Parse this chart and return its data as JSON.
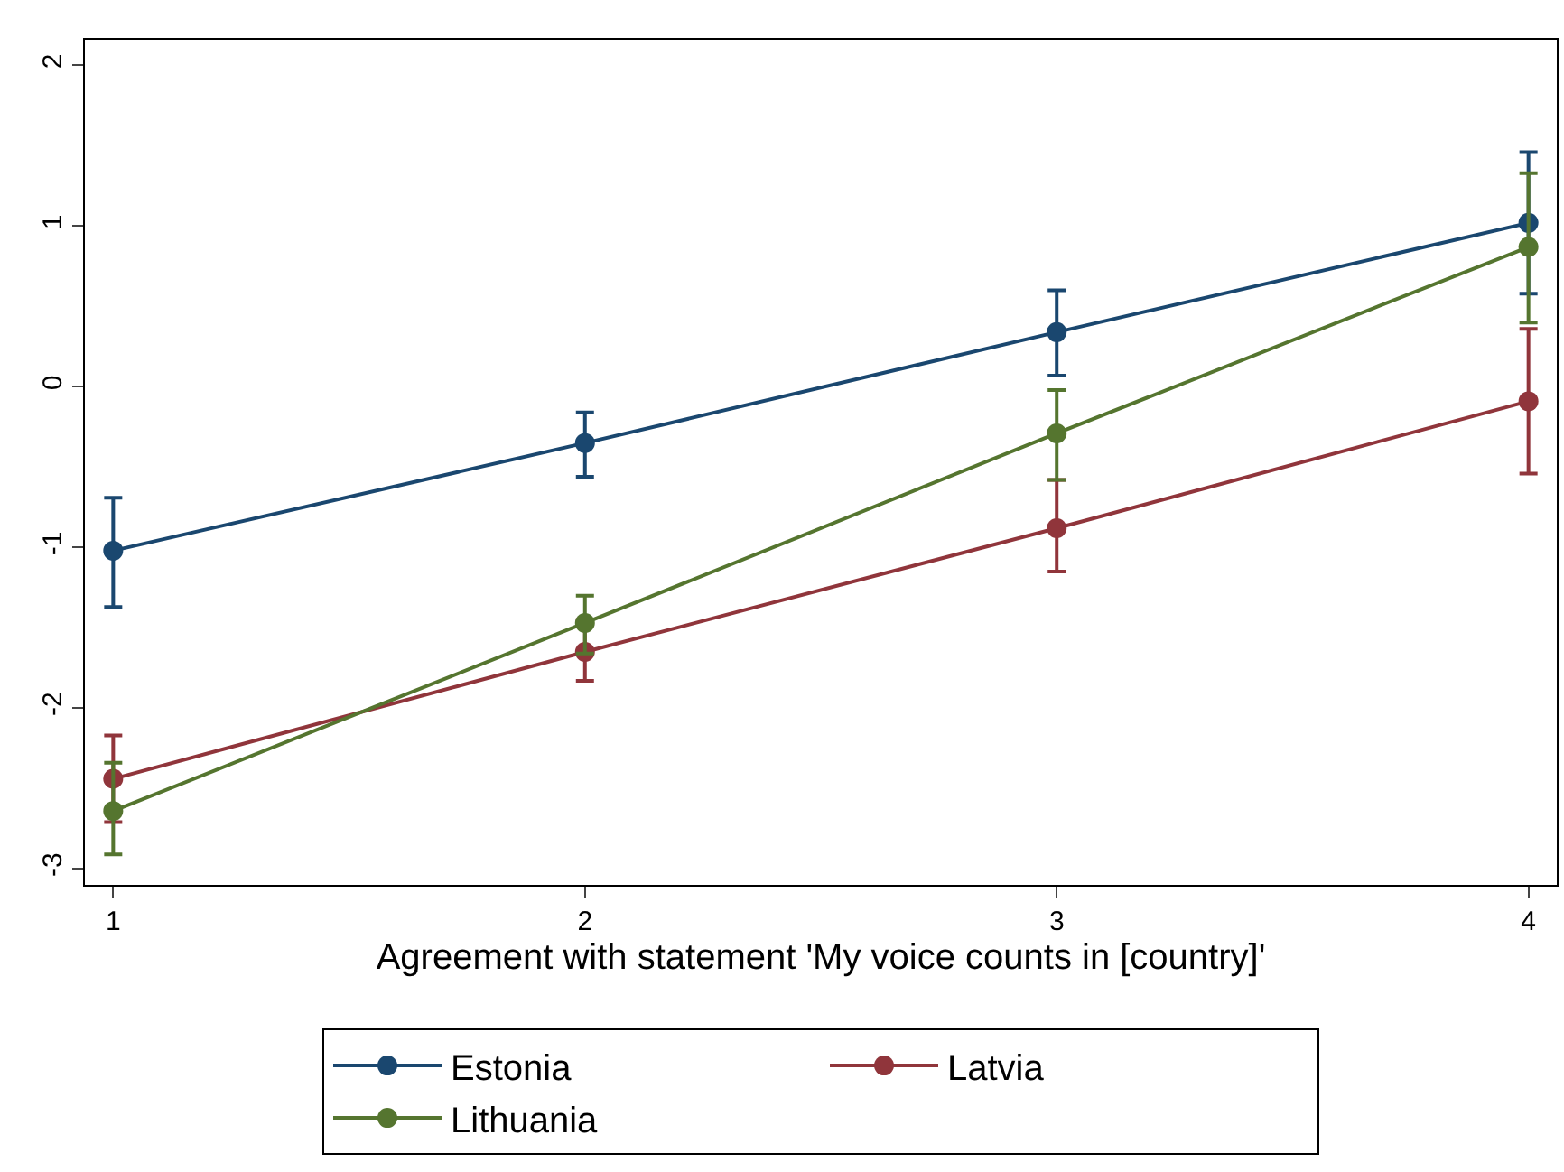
{
  "chart_data": {
    "type": "line",
    "xlabel": "Agreement with statement 'My voice counts in [country]'",
    "x": [
      1,
      2,
      3,
      4
    ],
    "series": [
      {
        "name": "Estonia",
        "color": "#1a476f",
        "values": [
          -1.02,
          -0.35,
          0.34,
          1.02
        ],
        "errors": [
          [
            -1.37,
            -0.69
          ],
          [
            -0.56,
            -0.16
          ],
          [
            0.07,
            0.6
          ],
          [
            0.58,
            1.46
          ]
        ]
      },
      {
        "name": "Latvia",
        "color": "#90353b",
        "values": [
          -2.44,
          -1.65,
          -0.88,
          -0.09
        ],
        "errors": [
          [
            -2.71,
            -2.17
          ],
          [
            -1.83,
            -1.45
          ],
          [
            -1.15,
            -0.58
          ],
          [
            -0.54,
            0.36
          ]
        ]
      },
      {
        "name": "Lithuania",
        "color": "#55752f",
        "values": [
          -2.64,
          -1.47,
          -0.29,
          0.87
        ],
        "errors": [
          [
            -2.91,
            -2.34
          ],
          [
            -1.66,
            -1.3
          ],
          [
            -0.58,
            -0.02
          ],
          [
            0.4,
            1.33
          ]
        ]
      }
    ],
    "xlim": [
      0.94,
      4.06
    ],
    "xticks": [
      1,
      2,
      3,
      4
    ],
    "ylim": [
      -3.1,
      2.16
    ],
    "yticks": [
      -3,
      -2,
      -1,
      0,
      1,
      2
    ],
    "grid": false,
    "legend": "bottom",
    "marker": "circle",
    "line_style": "solid"
  }
}
